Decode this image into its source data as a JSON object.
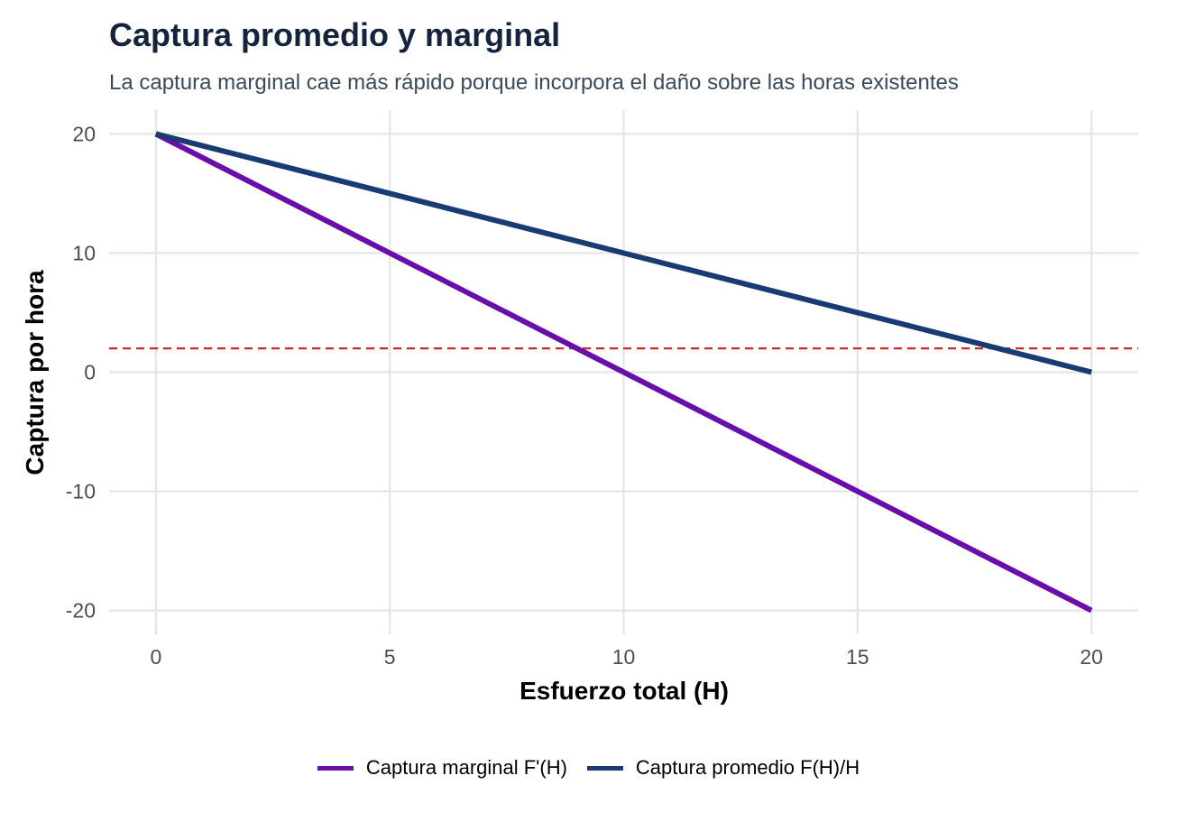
{
  "chart_data": {
    "type": "line",
    "title": "Captura promedio y marginal",
    "subtitle": "La captura marginal cae más rápido porque incorpora el daño sobre las horas existentes",
    "xlabel": "Esfuerzo total (H)",
    "ylabel": "Captura por hora",
    "xlim": [
      -1,
      21
    ],
    "ylim": [
      -22,
      22
    ],
    "x_ticks": [
      0,
      5,
      10,
      15,
      20
    ],
    "y_ticks": [
      -20,
      -10,
      0,
      10,
      20
    ],
    "grid": true,
    "legend_position": "bottom",
    "series": [
      {
        "name": "Captura marginal F'(H)",
        "color": "#6a0dad",
        "x": [
          0,
          20
        ],
        "y": [
          20,
          -20
        ]
      },
      {
        "name": "Captura promedio F(H)/H",
        "color": "#1a3a73",
        "x": [
          0,
          20
        ],
        "y": [
          20,
          0
        ]
      }
    ],
    "reference_line": {
      "axis": "y",
      "value": 2,
      "color": "#d62728",
      "style": "dashed"
    }
  }
}
